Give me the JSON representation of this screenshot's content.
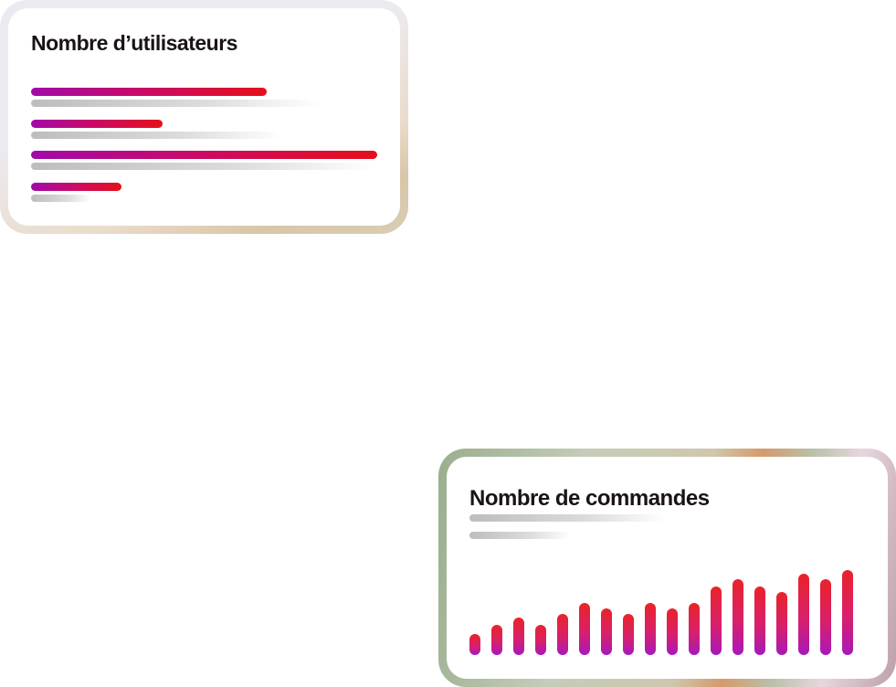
{
  "users_card": {
    "title": "Nombre d’utilisateurs",
    "chart_data": {
      "type": "bar",
      "orientation": "horizontal",
      "values": [
        0.68,
        0.38,
        1.0,
        0.26
      ],
      "xlim": [
        0,
        1
      ],
      "grid": false
    }
  },
  "orders_card": {
    "title": "Nombre de commandes",
    "chart_data": {
      "type": "bar",
      "orientation": "vertical",
      "values": [
        23,
        33,
        41,
        33,
        45,
        57,
        51,
        45,
        57,
        51,
        57,
        75,
        83,
        75,
        69,
        89,
        83,
        93
      ],
      "ylim": [
        0,
        100
      ],
      "grid": false
    }
  },
  "colors": {
    "bar_start": "#a10aa8",
    "bar_end": "#e60f1a",
    "title": "#1a1414",
    "placeholder": "#bdbdbd"
  }
}
